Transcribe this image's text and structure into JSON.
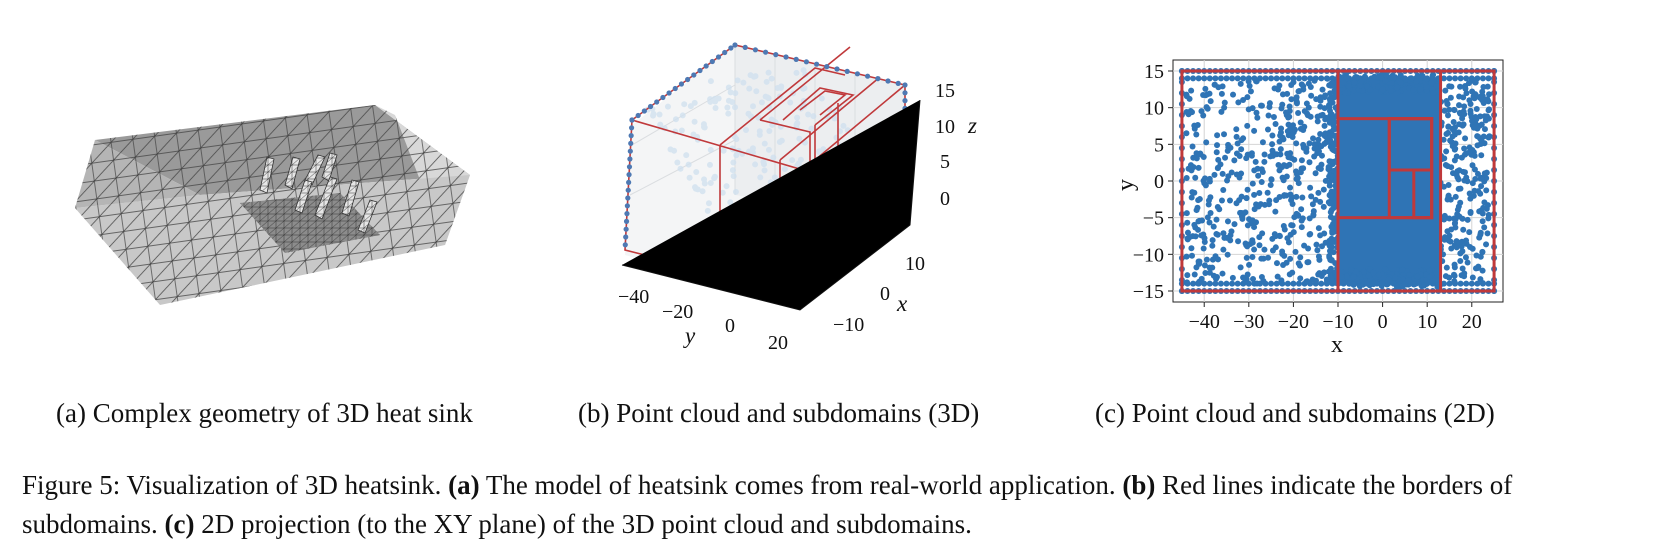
{
  "panels": {
    "a": {
      "caption": "(a) Complex geometry of 3D heat sink"
    },
    "b": {
      "caption": "(b) Point cloud and subdomains (3D)",
      "y_ticks": [
        "−40",
        "−20",
        "0",
        "20"
      ],
      "x_ticks": [
        "10",
        "0",
        "−10"
      ],
      "z_ticks": [
        "15",
        "10",
        "5",
        "0"
      ],
      "y_label": "y",
      "x_label": "x",
      "z_label": "z"
    },
    "c": {
      "caption": "(c) Point cloud and subdomains (2D)",
      "xlabel": "x",
      "ylabel": "y",
      "x_ticks": [
        "−40",
        "−30",
        "−20",
        "−10",
        "0",
        "10",
        "20"
      ],
      "y_ticks": [
        "15",
        "10",
        "5",
        "0",
        "−5",
        "−10",
        "−15"
      ]
    }
  },
  "figure_caption": {
    "prefix": "Figure 5: Visualization of 3D heatsink. ",
    "a_tag": "(a)",
    "a_text": " The model of heatsink comes from real-world application. ",
    "b_tag": "(b)",
    "b_text": " Red lines indicate the borders of subdomains. ",
    "c_tag": "(c)",
    "c_text": " 2D projection (to the XY plane) of the 3D point cloud and subdomains."
  },
  "chart_data": {
    "type": "scatter",
    "xlim": [
      -47,
      27
    ],
    "ylim": [
      -16.5,
      16.5
    ],
    "grid": true,
    "subdomain_color": "#c0393b",
    "point_color": "#2f74b5",
    "subdomain_boxes": [
      [
        -45,
        25,
        -15,
        15
      ],
      [
        -10,
        13,
        -15,
        15
      ],
      [
        -10,
        11,
        -5,
        8.5
      ],
      [
        1.5,
        11,
        -5,
        8.5
      ],
      [
        1.5,
        11,
        1.5,
        8.5
      ],
      [
        7,
        11,
        -5,
        1.5
      ]
    ]
  }
}
